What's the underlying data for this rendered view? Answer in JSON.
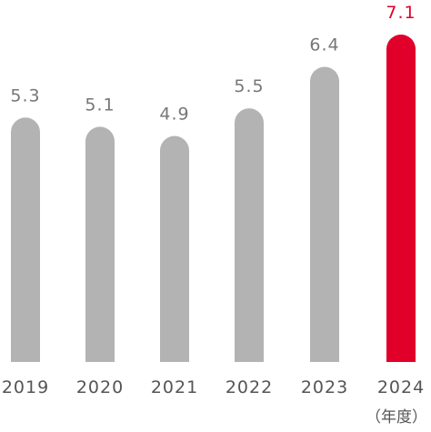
{
  "chart_data": {
    "type": "bar",
    "title": "",
    "xlabel": "",
    "ylabel": "",
    "categories": [
      "2019",
      "2020",
      "2021",
      "2022",
      "2023",
      "2024"
    ],
    "values": [
      5.3,
      5.1,
      4.9,
      5.5,
      6.4,
      7.1
    ],
    "value_labels": [
      "5.3",
      "5.1",
      "4.9",
      "5.5",
      "6.4",
      "7.1"
    ],
    "x_unit_label": "（年度）",
    "highlight_index": 5,
    "ylim": [
      0,
      7.1
    ],
    "grid": false,
    "legend": "none",
    "colors": {
      "bar": "#b3b3b3",
      "highlight": "#e0002a",
      "value_text": "#777777",
      "highlight_text": "#e0002a",
      "axis_text": "#555555"
    }
  }
}
